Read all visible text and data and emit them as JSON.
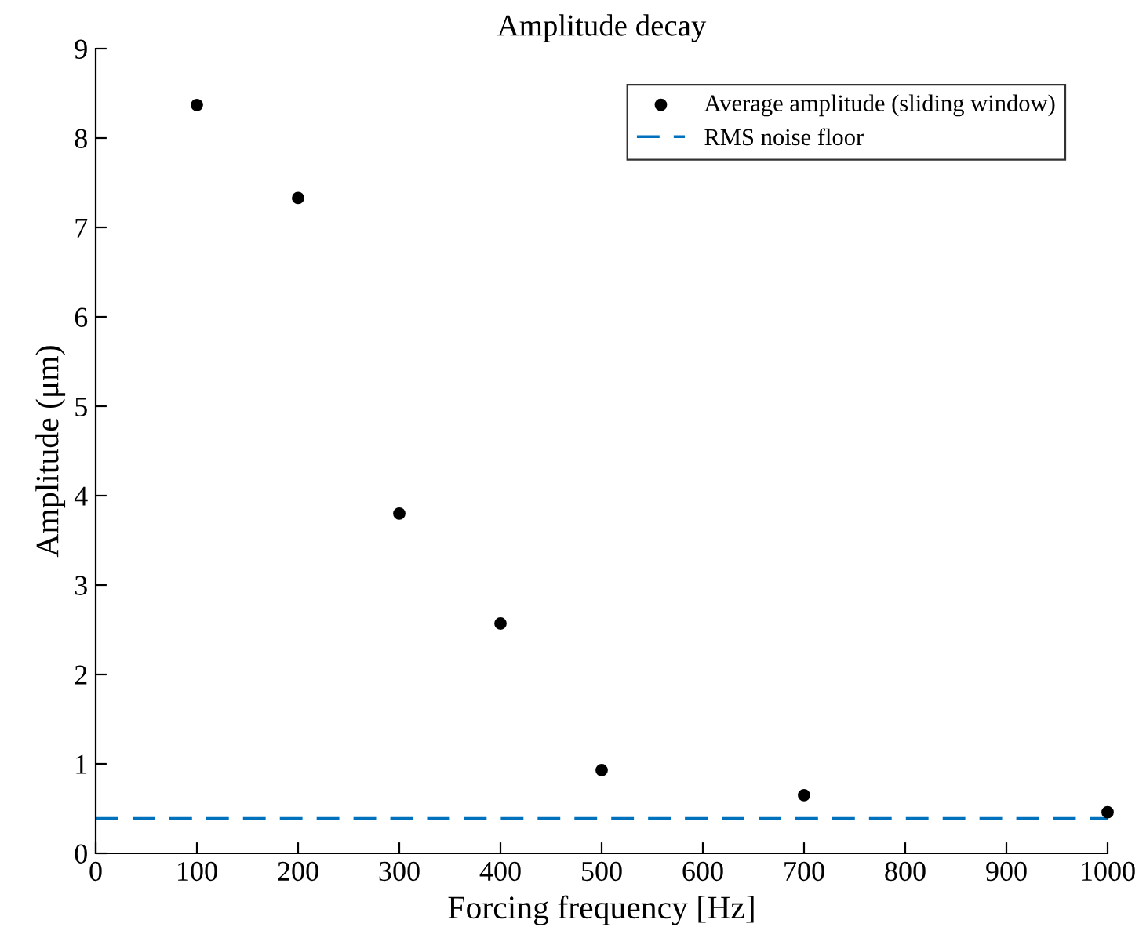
{
  "chart_data": {
    "type": "scatter",
    "title": "Amplitude decay",
    "xlabel": "Forcing frequency [Hz]",
    "ylabel": "Amplitude (μm)",
    "x": [
      100,
      200,
      300,
      400,
      500,
      700,
      1000
    ],
    "series": [
      {
        "name": "Average amplitude (sliding window)",
        "color": "#000000",
        "values": [
          8.37,
          7.33,
          3.8,
          2.57,
          0.93,
          0.65,
          0.46
        ]
      }
    ],
    "ref_lines": [
      {
        "axis": "y",
        "value": 0.39,
        "label": "RMS noise floor",
        "color": "#0072bd",
        "line_style": "dashed"
      }
    ],
    "xlim": [
      0,
      1000
    ],
    "ylim": [
      0,
      9
    ],
    "xticks": [
      0,
      100,
      200,
      300,
      400,
      500,
      600,
      700,
      800,
      900,
      1000
    ],
    "yticks": [
      0,
      1,
      2,
      3,
      4,
      5,
      6,
      7,
      8,
      9
    ],
    "marker": "circle",
    "grid": false,
    "legend": "top right"
  }
}
